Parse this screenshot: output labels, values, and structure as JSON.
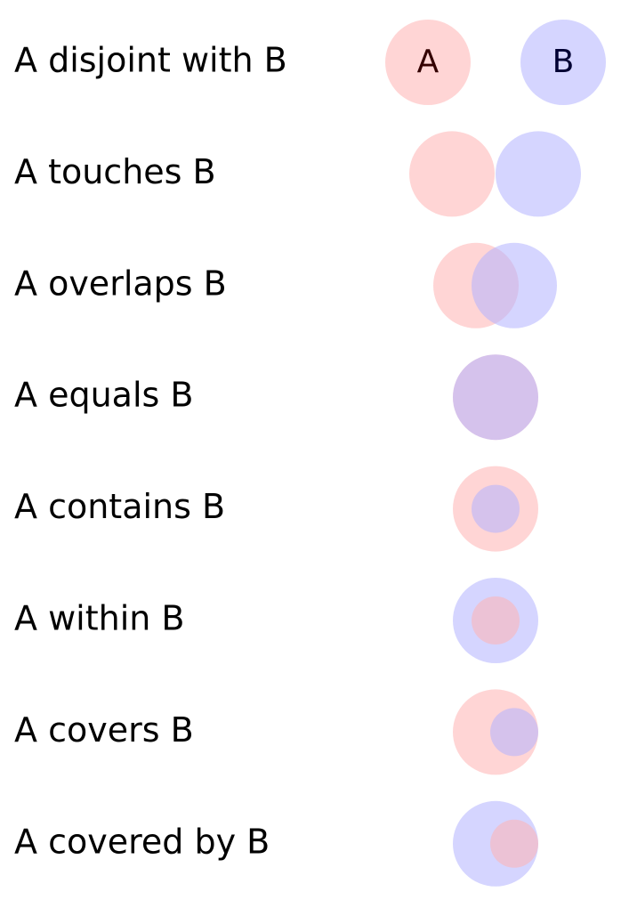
{
  "colors": {
    "a_fill": "#ffb3b3",
    "b_fill": "#b3b3ff",
    "fill_opacity": 0.55,
    "a_letter": "#330000",
    "b_letter": "#000033"
  },
  "rows": [
    {
      "label": "A disjoint with B",
      "relation": "disjoint",
      "a_letter": "A",
      "b_letter": "B"
    },
    {
      "label": "A touches B",
      "relation": "touches"
    },
    {
      "label": "A overlaps B",
      "relation": "overlaps"
    },
    {
      "label": "A equals B",
      "relation": "equals"
    },
    {
      "label": "A contains B",
      "relation": "contains"
    },
    {
      "label": "A within B",
      "relation": "within"
    },
    {
      "label": "A covers B",
      "relation": "covers"
    },
    {
      "label": "A covered by B",
      "relation": "covered-by"
    }
  ]
}
